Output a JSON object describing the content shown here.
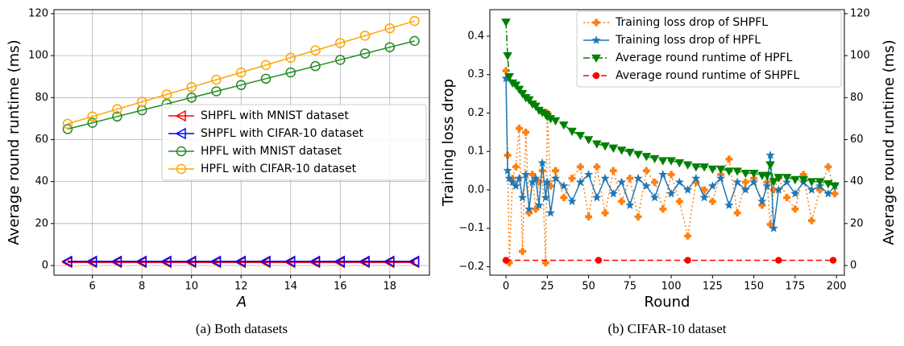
{
  "chart_data": [
    {
      "type": "line",
      "caption": "(a) Both datasets",
      "xlabel": "A",
      "ylabel": "Average round runtime (ms)",
      "x": [
        5,
        6,
        7,
        8,
        9,
        10,
        11,
        12,
        13,
        14,
        15,
        16,
        17,
        18,
        19
      ],
      "xlim": [
        4.45,
        19.6
      ],
      "xticks": [
        6,
        8,
        10,
        12,
        14,
        16,
        18
      ],
      "ylim": [
        -4.6,
        121.9
      ],
      "yticks": [
        0,
        20,
        40,
        60,
        80,
        100,
        120
      ],
      "grid": true,
      "legend": "center right",
      "series": [
        {
          "name": "SHPFL with MNIST dataset",
          "color": "#ff0000",
          "marker": "triangle-left",
          "linestyle": "solid",
          "filled": false,
          "values": [
            1.5,
            1.5,
            1.5,
            1.5,
            1.5,
            1.5,
            1.5,
            1.5,
            1.5,
            1.5,
            1.5,
            1.5,
            1.5,
            1.5,
            1.5
          ]
        },
        {
          "name": "SHPFL with CIFAR-10 dataset",
          "color": "#0000ff",
          "marker": "triangle-left",
          "linestyle": "solid",
          "filled": false,
          "values": [
            2,
            2,
            2,
            2,
            2,
            2,
            2,
            2,
            2,
            2,
            2,
            2,
            2,
            2,
            2
          ]
        },
        {
          "name": "HPFL with MNIST dataset",
          "color": "#228b22",
          "marker": "circle",
          "linestyle": "solid",
          "filled": false,
          "values": [
            65,
            68,
            71,
            74,
            77,
            80,
            83,
            86,
            89,
            92,
            95,
            98,
            101,
            104,
            107
          ]
        },
        {
          "name": "HPFL with CIFAR-10 dataset",
          "color": "#ffa500",
          "marker": "circle",
          "linestyle": "solid",
          "filled": false,
          "values": [
            67.5,
            71,
            74.5,
            78,
            81.5,
            85,
            88.5,
            92,
            95.5,
            99,
            102.5,
            106,
            109.5,
            113,
            116.5
          ]
        }
      ]
    },
    {
      "type": "line",
      "caption": "(b) CIFAR-10 dataset",
      "xlabel": "Round",
      "ylabel": "Training loss drop",
      "y2label": "Average round runtime (ms)",
      "x": [
        0,
        1,
        2,
        4,
        6,
        8,
        10,
        12,
        14,
        16,
        18,
        20,
        22,
        24,
        25,
        27,
        30,
        35,
        40,
        45,
        50,
        55,
        60,
        65,
        70,
        75,
        80,
        85,
        90,
        95,
        100,
        105,
        110,
        115,
        120,
        125,
        130,
        135,
        140,
        145,
        150,
        155,
        158,
        160,
        162,
        165,
        170,
        175,
        180,
        185,
        190,
        195,
        199
      ],
      "xlim": [
        -9.75,
        204.8
      ],
      "xticks": [
        0,
        25,
        50,
        75,
        100,
        125,
        150,
        175,
        200
      ],
      "ylim": [
        -0.222,
        0.469
      ],
      "yticks": [
        {
          "value": -0.2,
          "label": "−0.2"
        },
        {
          "value": -0.1,
          "label": "−0.1"
        },
        {
          "value": 0,
          "label": "0.0"
        },
        0.1,
        0.2,
        0.3,
        0.4
      ],
      "y2lim": [
        -4.6,
        121.9
      ],
      "y2ticks": [
        0,
        20,
        40,
        60,
        80,
        100,
        120
      ],
      "grid": false,
      "legend": "upper right",
      "series": [
        {
          "name": "Training loss drop of SHPFL",
          "color": "#ff7f0e",
          "marker": "plus",
          "linestyle": "dotted",
          "filled": true,
          "values": [
            0.31,
            0.09,
            -0.19,
            0.03,
            0.06,
            0.16,
            -0.16,
            0.15,
            -0.06,
            0.04,
            -0.05,
            0.02,
            0.05,
            -0.19,
            0.2,
            0.01,
            0.05,
            -0.02,
            0.03,
            0.06,
            -0.07,
            0.06,
            -0.06,
            0.05,
            -0.03,
            0.03,
            -0.07,
            0.05,
            0.02,
            -0.05,
            0.04,
            -0.03,
            -0.12,
            0.02,
            0.0,
            -0.03,
            0.04,
            0.08,
            -0.06,
            0.02,
            0.03,
            -0.04,
            0.02,
            -0.09,
            0.0,
            0.03,
            -0.02,
            -0.05,
            0.04,
            -0.08,
            0.0,
            0.06,
            -0.01
          ]
        },
        {
          "name": "Training loss drop of HPFL",
          "color": "#1f77b4",
          "marker": "star",
          "linestyle": "solid",
          "filled": true,
          "values": [
            0.29,
            0.05,
            0.03,
            0.02,
            0.01,
            0.03,
            -0.02,
            0.04,
            -0.05,
            0.02,
            0.03,
            -0.04,
            0.07,
            -0.02,
            0.02,
            -0.06,
            0.03,
            0.01,
            -0.03,
            0.02,
            0.04,
            -0.02,
            0.03,
            -0.01,
            0.02,
            -0.04,
            0.03,
            0.01,
            -0.02,
            0.04,
            -0.01,
            0.02,
            0.0,
            0.03,
            -0.02,
            0.01,
            0.03,
            -0.04,
            0.02,
            0.0,
            0.02,
            -0.03,
            0.01,
            0.09,
            -0.1,
            0.0,
            0.02,
            -0.01,
            0.02,
            0.0,
            0.01,
            -0.01,
            0.01
          ]
        },
        {
          "name": "Average round runtime of HPFL",
          "color": "#008000",
          "marker": "triangle-down",
          "linestyle": "dashdot",
          "filled": true,
          "axis": "y2",
          "values": [
            116,
            100,
            90,
            87,
            86,
            84,
            82,
            80,
            79,
            77,
            76,
            74,
            73,
            72,
            71,
            70,
            69,
            67,
            64,
            62,
            60,
            58,
            57,
            56,
            55,
            54,
            53,
            52,
            51,
            50,
            50,
            49,
            48,
            47,
            47,
            46,
            46,
            45,
            45,
            44,
            44,
            43,
            43,
            48,
            40,
            42,
            42,
            41,
            41,
            40,
            40,
            39,
            38
          ]
        },
        {
          "name": "Average round runtime of SHPFL",
          "color": "#ff0000",
          "marker": "circle",
          "linestyle": "dashed",
          "filled": true,
          "axis": "y2",
          "x": [
            0,
            56,
            110,
            165,
            198
          ],
          "values": [
            2.5,
            2.5,
            2.5,
            2.5,
            2.5
          ]
        }
      ]
    }
  ]
}
